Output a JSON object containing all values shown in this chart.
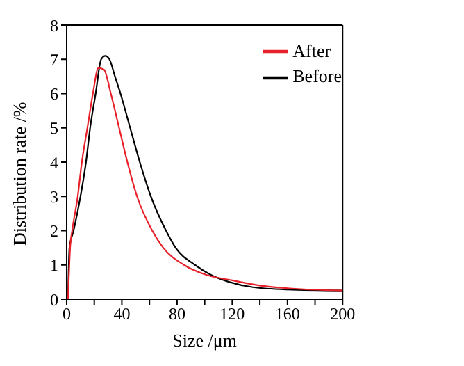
{
  "chart_data": {
    "type": "line",
    "xlabel": "Size /μm",
    "ylabel": "Distribution rate /%",
    "xlim": [
      0,
      200
    ],
    "ylim": [
      0,
      8
    ],
    "xticks": [
      0,
      {
        "value": 20,
        "label": null
      },
      40,
      {
        "value": 60,
        "label": null
      },
      80,
      {
        "value": 100,
        "label": null
      },
      120,
      {
        "value": 140,
        "label": null
      },
      160,
      {
        "value": 180,
        "label": null
      },
      200
    ],
    "yticks": [
      0,
      1,
      2,
      3,
      4,
      5,
      6,
      7,
      8
    ],
    "legend": "top right",
    "grid": false,
    "marker": "none",
    "line_style": "solid",
    "series": [
      {
        "name": "Before",
        "color": "#000000",
        "x": [
          1,
          2,
          5,
          10,
          14,
          17,
          21,
          25,
          28,
          31,
          35,
          39,
          46,
          53,
          61,
          72,
          79,
          93,
          105,
          118,
          135,
          160,
          200
        ],
        "values": [
          0,
          1.5,
          2,
          3,
          4,
          5,
          6,
          7,
          7.1,
          7,
          6.5,
          6,
          5,
          4,
          3,
          2,
          1.5,
          1,
          0.7,
          0.5,
          0.35,
          0.28,
          0.25
        ]
      },
      {
        "name": "After",
        "color": "#e8202a",
        "x": [
          1,
          2.5,
          4,
          8,
          11,
          15,
          19,
          23,
          27,
          32,
          38,
          44,
          51,
          62,
          70,
          85,
          102,
          120,
          140,
          160,
          200
        ],
        "values": [
          0,
          1.5,
          2,
          3,
          4,
          5,
          6,
          6.75,
          6.7,
          6,
          5,
          4,
          3,
          2,
          1.5,
          1,
          0.7,
          0.55,
          0.4,
          0.32,
          0.25
        ]
      }
    ]
  }
}
